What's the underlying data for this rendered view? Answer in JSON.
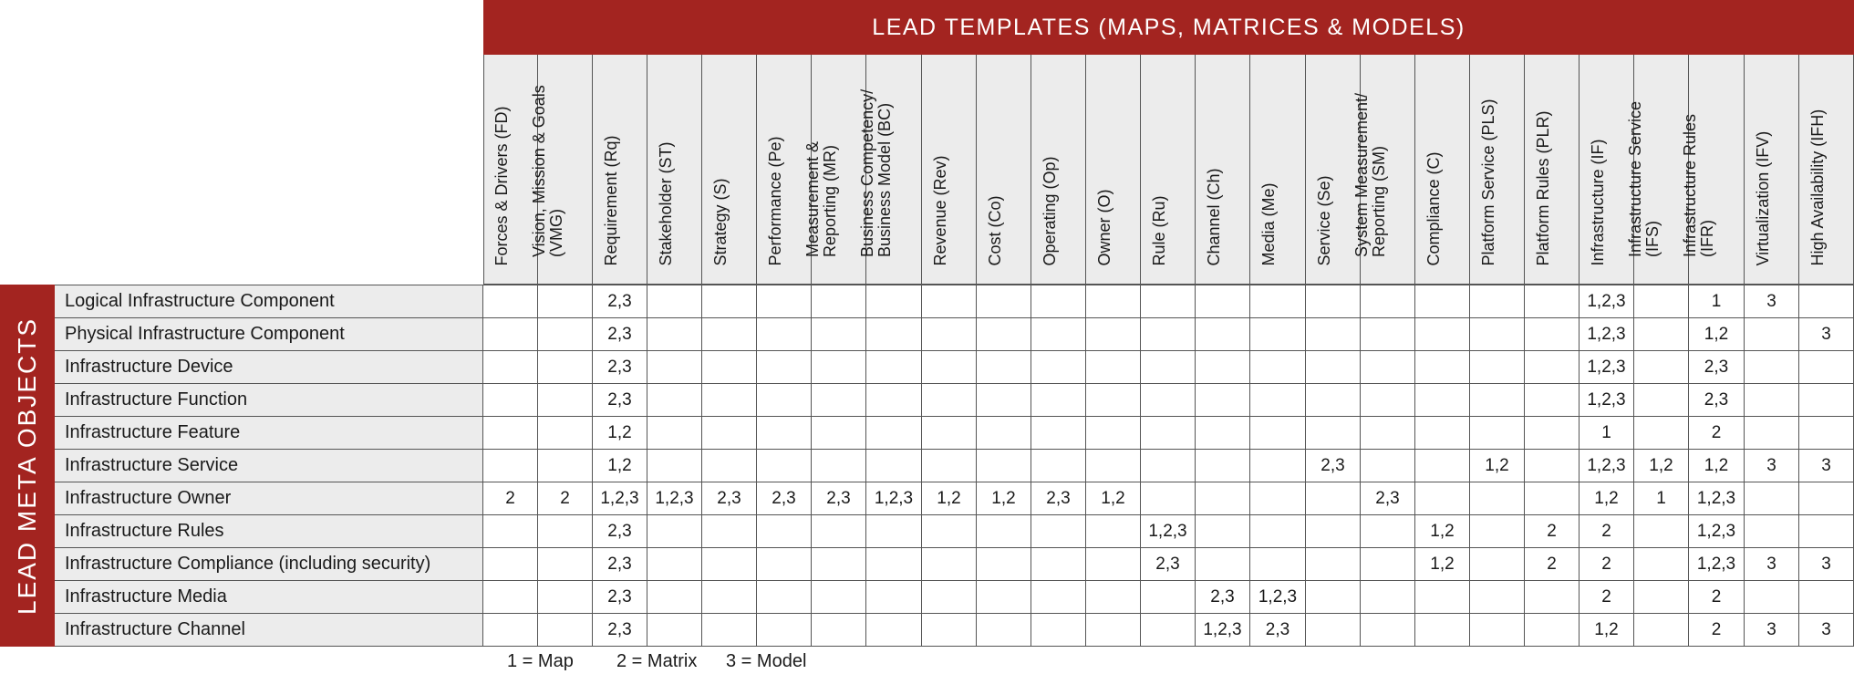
{
  "top_banner": "LEAD TEMPLATES (MAPS, MATRICES & MODELS)",
  "side_banner": "LEAD META OBJECTS",
  "columns": [
    "Forces & Drivers (FD)",
    "Vision, Mission & Goals\n(VMG)",
    "Requirement (Rq)",
    "Stakeholder (ST)",
    "Strategy (S)",
    "Performance (Pe)",
    "Measurement &\nReporting (MR)",
    "Business Competency/\nBusiness Model (BC)",
    "Revenue (Rev)",
    "Cost (Co)",
    "Operating (Op)",
    "Owner (O)",
    "Rule (Ru)",
    "Channel (Ch)",
    "Media (Me)",
    "Service (Se)",
    "System Measurement/\nReporting (SM)",
    "Compliance (C)",
    "Platform Service (PLS)",
    "Platform Rules (PLR)",
    "Infrastructure (IF)",
    "Infrastructure Service\n(IFS)",
    "Infrastructure Rules\n(IFR)",
    "Virtualization (IFV)",
    "High Availability (IFH)"
  ],
  "rows": [
    {
      "label": "Logical Infrastructure Component",
      "cells": [
        "",
        "",
        "2,3",
        "",
        "",
        "",
        "",
        "",
        "",
        "",
        "",
        "",
        "",
        "",
        "",
        "",
        "",
        "",
        "",
        "",
        "1,2,3",
        "",
        "1",
        "3",
        ""
      ]
    },
    {
      "label": "Physical Infrastructure Component",
      "cells": [
        "",
        "",
        "2,3",
        "",
        "",
        "",
        "",
        "",
        "",
        "",
        "",
        "",
        "",
        "",
        "",
        "",
        "",
        "",
        "",
        "",
        "1,2,3",
        "",
        "1,2",
        "",
        "3"
      ]
    },
    {
      "label": "Infrastructure Device",
      "cells": [
        "",
        "",
        "2,3",
        "",
        "",
        "",
        "",
        "",
        "",
        "",
        "",
        "",
        "",
        "",
        "",
        "",
        "",
        "",
        "",
        "",
        "1,2,3",
        "",
        "2,3",
        "",
        ""
      ]
    },
    {
      "label": "Infrastructure Function",
      "cells": [
        "",
        "",
        "2,3",
        "",
        "",
        "",
        "",
        "",
        "",
        "",
        "",
        "",
        "",
        "",
        "",
        "",
        "",
        "",
        "",
        "",
        "1,2,3",
        "",
        "2,3",
        "",
        ""
      ]
    },
    {
      "label": "Infrastructure Feature",
      "cells": [
        "",
        "",
        "1,2",
        "",
        "",
        "",
        "",
        "",
        "",
        "",
        "",
        "",
        "",
        "",
        "",
        "",
        "",
        "",
        "",
        "",
        "1",
        "",
        "2",
        "",
        ""
      ]
    },
    {
      "label": "Infrastructure Service",
      "cells": [
        "",
        "",
        "1,2",
        "",
        "",
        "",
        "",
        "",
        "",
        "",
        "",
        "",
        "",
        "",
        "",
        "2,3",
        "",
        "",
        "1,2",
        "",
        "1,2,3",
        "1,2",
        "1,2",
        "3",
        "3"
      ]
    },
    {
      "label": "Infrastructure Owner",
      "cells": [
        "2",
        "2",
        "1,2,3",
        "1,2,3",
        "2,3",
        "2,3",
        "2,3",
        "1,2,3",
        "1,2",
        "1,2",
        "2,3",
        "1,2",
        "",
        "",
        "",
        "",
        "2,3",
        "",
        "",
        "",
        "1,2",
        "1",
        "1,2,3",
        "",
        ""
      ]
    },
    {
      "label": "Infrastructure Rules",
      "cells": [
        "",
        "",
        "2,3",
        "",
        "",
        "",
        "",
        "",
        "",
        "",
        "",
        "",
        "1,2,3",
        "",
        "",
        "",
        "",
        "1,2",
        "",
        "2",
        "2",
        "",
        "1,2,3",
        "",
        ""
      ]
    },
    {
      "label": "Infrastructure Compliance (including security)",
      "cells": [
        "",
        "",
        "2,3",
        "",
        "",
        "",
        "",
        "",
        "",
        "",
        "",
        "",
        "2,3",
        "",
        "",
        "",
        "",
        "1,2",
        "",
        "2",
        "2",
        "",
        "1,2,3",
        "3",
        "3"
      ]
    },
    {
      "label": "Infrastructure Media",
      "cells": [
        "",
        "",
        "2,3",
        "",
        "",
        "",
        "",
        "",
        "",
        "",
        "",
        "",
        "",
        "2,3",
        "1,2,3",
        "",
        "",
        "",
        "",
        "",
        "2",
        "",
        "2",
        "",
        ""
      ]
    },
    {
      "label": "Infrastructure Channel",
      "cells": [
        "",
        "",
        "2,3",
        "",
        "",
        "",
        "",
        "",
        "",
        "",
        "",
        "",
        "",
        "1,2,3",
        "2,3",
        "",
        "",
        "",
        "",
        "",
        "1,2",
        "",
        "2",
        "3",
        "3"
      ]
    }
  ],
  "legend": {
    "map": "1 = Map",
    "matrix": "2 = Matrix",
    "model": "3 = Model"
  },
  "colors": {
    "accent": "#a32420",
    "header_bg": "#ececec",
    "grid": "#555555"
  }
}
